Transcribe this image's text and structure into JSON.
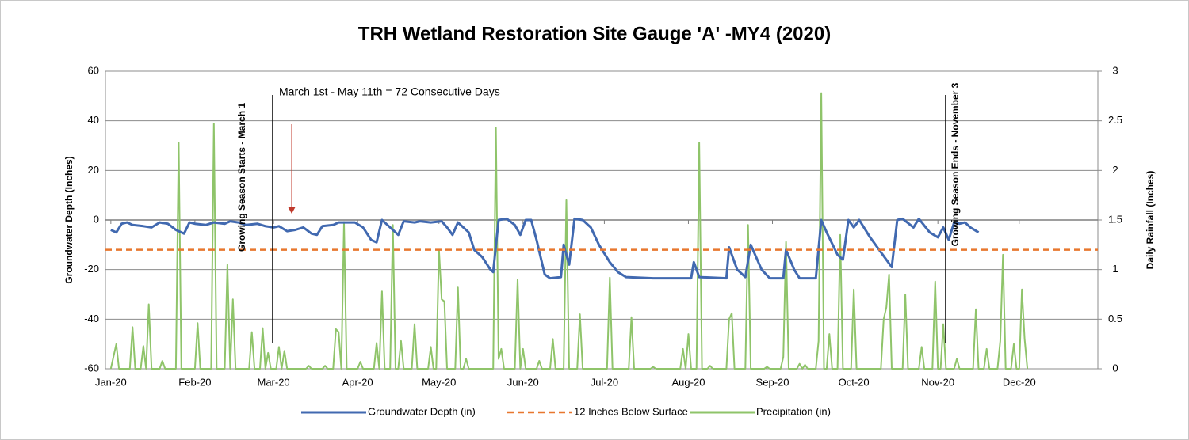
{
  "chart_data": {
    "type": "line",
    "title": "TRH Wetland Restoration Site Gauge 'A' -MY4 (2020)",
    "y_label": "Groundwater Depth (Inches)",
    "y2_label": "Daily Rainfall (Inches)",
    "annotations": [
      "Growing Season Starts  - March 1",
      "March 1st - May 11th = 72 Consecutive Days",
      "Growing Season Ends  - November 3"
    ],
    "xlim": [
      -2,
      364
    ],
    "xticks": [
      {
        "value": 0,
        "label": "Jan-20"
      },
      {
        "value": 31,
        "label": "Feb-20"
      },
      {
        "value": 60,
        "label": "Mar-20"
      },
      {
        "value": 91,
        "label": "Apr-20"
      },
      {
        "value": 121,
        "label": "May-20"
      },
      {
        "value": 152,
        "label": "Jun-20"
      },
      {
        "value": 182,
        "label": "Jul-20"
      },
      {
        "value": 213,
        "label": "Aug-20"
      },
      {
        "value": 244,
        "label": "Sep-20"
      },
      {
        "value": 274,
        "label": "Oct-20"
      },
      {
        "value": 305,
        "label": "Nov-20"
      },
      {
        "value": 335,
        "label": "Dec-20"
      }
    ],
    "ylim": [
      -60,
      60
    ],
    "yticks": [
      -60,
      -40,
      -20,
      0,
      20,
      40,
      60
    ],
    "y2lim": [
      0,
      3
    ],
    "y2ticks": [
      0,
      0.5,
      1,
      1.5,
      2,
      2.5,
      3
    ],
    "grid": true,
    "legend": "bottom",
    "series": [
      {
        "name": "Groundwater Depth (in)",
        "color": "#4169b0",
        "style": "solid",
        "x": [
          0,
          2,
          4,
          6,
          8,
          12,
          15,
          18,
          21,
          24,
          27,
          29,
          31,
          35,
          38,
          42,
          44,
          47,
          50,
          54,
          57,
          60,
          62,
          65,
          68,
          71,
          74,
          76,
          78,
          82,
          84,
          90,
          93,
          96,
          98,
          100,
          102,
          104,
          106,
          108,
          112,
          114,
          118,
          122,
          124,
          126,
          128,
          132,
          134,
          137,
          140,
          141,
          143,
          146,
          149,
          151,
          153,
          155,
          157,
          160,
          162,
          166,
          167,
          169,
          171,
          174,
          177,
          180,
          184,
          187,
          190,
          200,
          210,
          214,
          215,
          217,
          227,
          228,
          231,
          234,
          236,
          240,
          243,
          248,
          249,
          252,
          254,
          260,
          262,
          264,
          268,
          270,
          272,
          274,
          276,
          280,
          284,
          288,
          290,
          292,
          296,
          298,
          302,
          305,
          307,
          309,
          311,
          313,
          315,
          317,
          320
        ],
        "values": [
          -4,
          -5,
          -1.5,
          -1,
          -2,
          -2.5,
          -3,
          -1,
          -1.5,
          -4,
          -5.5,
          -1,
          -1.5,
          -2,
          -1,
          -1.5,
          -0.5,
          -1,
          -2,
          -1.5,
          -2.5,
          -3,
          -2.5,
          -4.5,
          -4,
          -3,
          -5.5,
          -6,
          -2.5,
          -2,
          -1,
          -1,
          -3,
          -8,
          -9,
          0,
          -2,
          -4,
          -6,
          -0.5,
          -1,
          -0.5,
          -1,
          -0.5,
          -3,
          -6,
          -1,
          -5,
          -12,
          -15,
          -20,
          -21,
          0,
          0.5,
          -2,
          -6,
          0,
          0,
          -8,
          -22,
          -23.5,
          -23,
          -10,
          -18,
          0.5,
          0,
          -3,
          -10,
          -17,
          -21,
          -23,
          -23.5,
          -23.5,
          -23.5,
          -17,
          -23,
          -23.5,
          -11,
          -20,
          -23,
          -10,
          -20,
          -23.5,
          -23.5,
          -12,
          -20,
          -23.5,
          -23.5,
          0,
          -5,
          -14,
          -16,
          0,
          -3,
          0,
          -7,
          -13,
          -19,
          0,
          0.5,
          -3,
          0.5,
          -5,
          -7,
          -3,
          -8,
          -1,
          -1.5,
          -1,
          -3,
          -5
        ]
      },
      {
        "name": "12 Inches Below Surface",
        "color": "#e8772e",
        "style": "dashed",
        "x": [
          -2,
          364
        ],
        "values": [
          -12,
          -12
        ]
      },
      {
        "name": "Precipitation (in)",
        "color": "#8fc46a",
        "style": "solid",
        "axis": "y2",
        "x": [
          0,
          2,
          3,
          7,
          8,
          9,
          11,
          12,
          13,
          14,
          15,
          18,
          19,
          20,
          24,
          25,
          26,
          31,
          32,
          33,
          37,
          38,
          39,
          42,
          43,
          44,
          45,
          46,
          51,
          52,
          53,
          55,
          56,
          57,
          58,
          59,
          61,
          62,
          63,
          64,
          65,
          72,
          73,
          74,
          78,
          79,
          80,
          82,
          83,
          84,
          85,
          86,
          87,
          91,
          92,
          93,
          97,
          98,
          99,
          100,
          101,
          103,
          104,
          105,
          106,
          107,
          108,
          111,
          112,
          113,
          117,
          118,
          119,
          120,
          121,
          122,
          123,
          124,
          127,
          128,
          129,
          130,
          131,
          132,
          141,
          142,
          143,
          144,
          145,
          149,
          150,
          151,
          152,
          153,
          157,
          158,
          159,
          162,
          163,
          164,
          167,
          168,
          169,
          172,
          173,
          174,
          183,
          184,
          185,
          191,
          192,
          193,
          199,
          200,
          201,
          210,
          211,
          212,
          213,
          214,
          216,
          217,
          218,
          220,
          221,
          222,
          227,
          228,
          229,
          230,
          234,
          235,
          236,
          241,
          242,
          243,
          247,
          248,
          249,
          250,
          253,
          254,
          255,
          256,
          257,
          260,
          261,
          262,
          263,
          264,
          265,
          266,
          268,
          269,
          270,
          273,
          274,
          275,
          284,
          285,
          286,
          287,
          288,
          292,
          293,
          294,
          298,
          299,
          300,
          303,
          304,
          305,
          306,
          307,
          308,
          311,
          312,
          313,
          318,
          319,
          320,
          322,
          323,
          324,
          327,
          328,
          329,
          330,
          332,
          333,
          334,
          335,
          336,
          337,
          338
        ],
        "values": [
          0,
          0.25,
          0,
          0,
          0.42,
          0,
          0,
          0.23,
          0,
          0.65,
          0,
          0,
          0.08,
          0,
          0,
          2.28,
          0,
          0,
          0.46,
          0,
          0,
          2.47,
          0,
          0,
          1.05,
          0,
          0.7,
          0,
          0,
          0.37,
          0,
          0,
          0.41,
          0,
          0.16,
          0,
          0,
          0.22,
          0,
          0.18,
          0,
          0,
          0.03,
          0,
          0,
          0.03,
          0,
          0,
          0.4,
          0.37,
          0,
          1.48,
          0,
          0,
          0.07,
          0,
          0,
          0.26,
          0,
          0.78,
          0,
          0,
          1.45,
          0,
          0,
          0.28,
          0,
          0,
          0.45,
          0,
          0,
          0.22,
          0,
          0,
          1.2,
          0.7,
          0.68,
          0,
          0,
          0.82,
          0,
          0,
          0.1,
          0,
          0,
          2.43,
          0.1,
          0.2,
          0,
          0,
          0.9,
          0,
          0.2,
          0,
          0,
          0.08,
          0,
          0,
          0.3,
          0,
          0,
          1.7,
          0,
          0,
          0.55,
          0,
          0,
          0.92,
          0,
          0,
          0.52,
          0,
          0,
          0.02,
          0,
          0,
          0.2,
          0,
          0.35,
          0,
          0,
          2.28,
          0,
          0,
          0.03,
          0,
          0,
          0.5,
          0.56,
          0,
          0,
          1.45,
          0,
          0,
          0.02,
          0,
          0,
          0.12,
          1.28,
          0,
          0,
          0.05,
          0,
          0.04,
          0,
          0,
          0.28,
          2.78,
          0,
          0,
          0.35,
          0,
          0,
          1.35,
          0,
          0,
          0.8,
          0,
          0,
          0.5,
          0.62,
          0.95,
          0,
          0,
          0.75,
          0,
          0,
          0.22,
          0,
          0,
          0.88,
          0,
          0,
          0.45,
          0,
          0,
          0.1,
          0,
          0,
          0.6,
          0,
          0,
          0.2,
          0,
          0,
          0.28,
          1.15,
          0,
          0,
          0.25,
          0,
          0,
          0.8,
          0.3,
          0
        ]
      }
    ]
  }
}
